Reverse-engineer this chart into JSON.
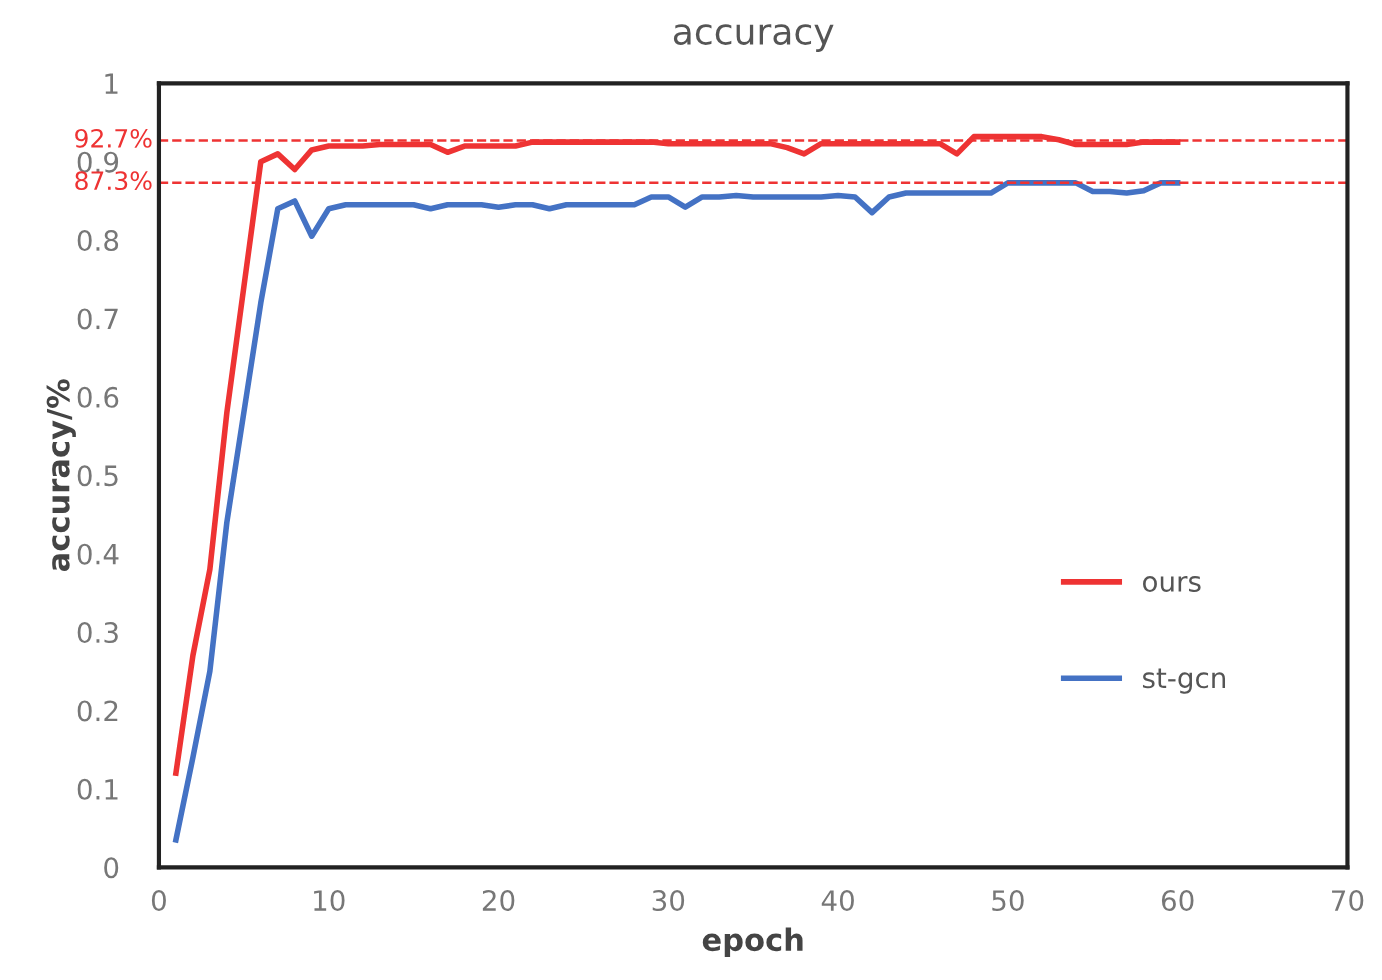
{
  "chart_data": {
    "type": "line",
    "title": "accuracy",
    "xlabel": "epoch",
    "ylabel": "accuracy/%",
    "xlim": [
      0,
      70
    ],
    "xticks": [
      0,
      10,
      20,
      30,
      40,
      50,
      60,
      70
    ],
    "ylim": [
      0,
      1
    ],
    "yticks": [
      0,
      0.1,
      0.2,
      0.3,
      0.4,
      0.5,
      0.6,
      0.7,
      0.8,
      0.9,
      1
    ],
    "x": [
      1,
      2,
      3,
      4,
      5,
      6,
      7,
      8,
      9,
      10,
      11,
      12,
      13,
      14,
      15,
      16,
      17,
      18,
      19,
      20,
      21,
      22,
      23,
      24,
      25,
      26,
      27,
      28,
      29,
      30,
      31,
      32,
      33,
      34,
      35,
      36,
      37,
      38,
      39,
      40,
      41,
      42,
      43,
      44,
      45,
      46,
      47,
      48,
      49,
      50,
      51,
      52,
      53,
      54,
      55,
      56,
      57,
      58,
      59,
      60
    ],
    "series": [
      {
        "name": "ours",
        "color": "#ee3333",
        "values": [
          0.12,
          0.27,
          0.38,
          0.58,
          0.74,
          0.9,
          0.91,
          0.89,
          0.915,
          0.92,
          0.92,
          0.92,
          0.922,
          0.922,
          0.922,
          0.922,
          0.912,
          0.92,
          0.92,
          0.92,
          0.92,
          0.925,
          0.925,
          0.925,
          0.925,
          0.925,
          0.925,
          0.925,
          0.925,
          0.923,
          0.923,
          0.923,
          0.923,
          0.923,
          0.923,
          0.923,
          0.918,
          0.91,
          0.923,
          0.923,
          0.923,
          0.923,
          0.923,
          0.923,
          0.923,
          0.923,
          0.91,
          0.932,
          0.932,
          0.932,
          0.932,
          0.932,
          0.928,
          0.922,
          0.922,
          0.922,
          0.922,
          0.925,
          0.925,
          0.925
        ]
      },
      {
        "name": "st-gcn",
        "color": "#4472c4",
        "values": [
          0.035,
          0.14,
          0.25,
          0.44,
          0.58,
          0.72,
          0.84,
          0.85,
          0.805,
          0.84,
          0.845,
          0.845,
          0.845,
          0.845,
          0.845,
          0.84,
          0.845,
          0.845,
          0.845,
          0.842,
          0.845,
          0.845,
          0.84,
          0.845,
          0.845,
          0.845,
          0.845,
          0.845,
          0.855,
          0.855,
          0.842,
          0.855,
          0.855,
          0.857,
          0.855,
          0.855,
          0.855,
          0.855,
          0.855,
          0.857,
          0.855,
          0.835,
          0.855,
          0.86,
          0.86,
          0.86,
          0.86,
          0.86,
          0.86,
          0.873,
          0.873,
          0.873,
          0.873,
          0.873,
          0.862,
          0.862,
          0.86,
          0.863,
          0.873,
          0.873
        ]
      }
    ],
    "ref_lines": [
      {
        "axis": "y",
        "value": 0.927,
        "label": "92.7%",
        "color": "#ee3333",
        "line_style": "dashed"
      },
      {
        "axis": "y",
        "value": 0.873,
        "label": "87.3%",
        "color": "#ee3333",
        "line_style": "dashed"
      }
    ],
    "grid": false,
    "legend": "right",
    "marker": "none",
    "line_style": "solid"
  }
}
